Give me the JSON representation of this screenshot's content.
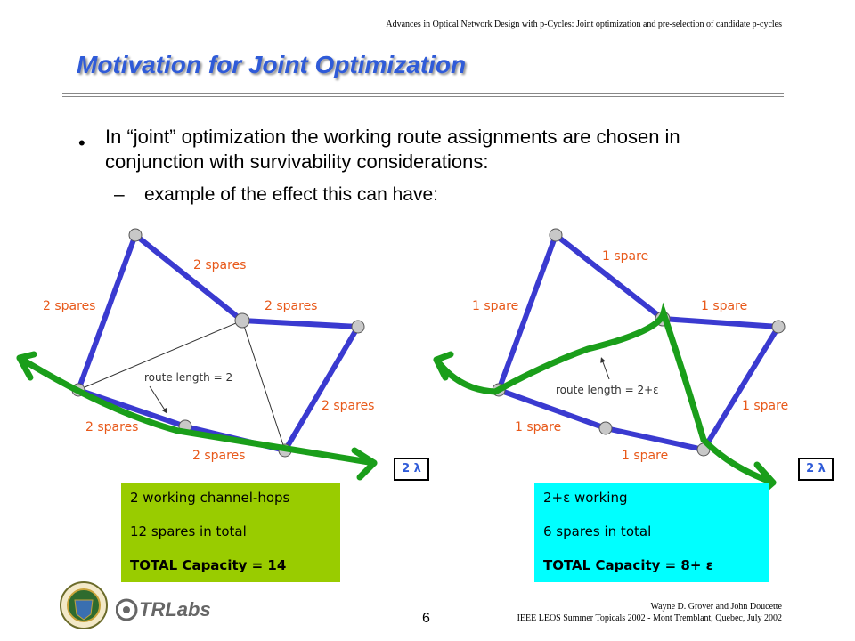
{
  "header": "Advances in Optical Network Design with p-Cycles: Joint optimization and pre-selection of candidate p-cycles",
  "title": "Motivation for Joint Optimization",
  "bullet": "In “joint” optimization the working route assignments are chosen in conjunction with survivability considerations:",
  "sub_bullet": "example of the effect  this can have:",
  "left": {
    "labels": [
      "2 spares",
      "2 spares",
      "2 spares",
      "2 spares",
      "2 spares",
      "2 spares"
    ],
    "route_length": "route length = 2",
    "lambda": "2 λ",
    "box": [
      "2 working channel-hops",
      "12 spares in total",
      "TOTAL Capacity = 14"
    ],
    "box_color": "#99cc00"
  },
  "right": {
    "labels": [
      "1 spare",
      "1 spare",
      "1 spare",
      "1 spare",
      "1 spare",
      "1 spare"
    ],
    "route_length": "route length = 2+ε",
    "lambda": "2 λ",
    "box": [
      "2+ε working",
      "6 spares in total",
      "TOTAL Capacity = 8+ ε"
    ],
    "box_color": "#00ffff"
  },
  "footer": {
    "author": "Wayne D. Grover and John Doucette",
    "venue": "IEEE LEOS Summer Topicals 2002 - Mont Tremblant, Quebec, July 2002",
    "page": "6",
    "logo_text": "TRLabs"
  },
  "colors": {
    "title": "#2f5bd8",
    "cycle": "#3a3ad0",
    "route": "#1a9e1a",
    "labels": "#e8591a"
  }
}
